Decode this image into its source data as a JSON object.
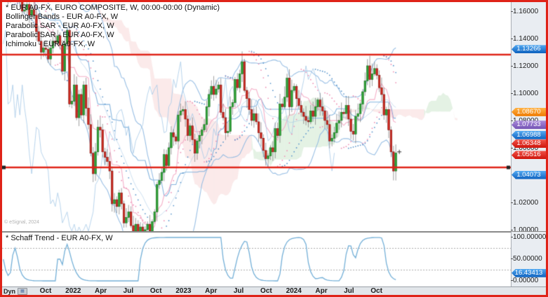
{
  "window_border_color": "#df2318",
  "legend": {
    "lines": [
      "* EUR A0-FX, EURO COMPOSITE, W, 00:00-00:00 (Dynamic)",
      "Bollinger Bands - EUR A0-FX, W",
      "Parabolic SAR - EUR A0-FX, W",
      "Parabolic SAR - EUR A0-FX, W",
      "Ichimoku - EUR A0-FX, W"
    ]
  },
  "schaff_panel": {
    "title": "* Schaff Trend - EUR A0-FX, W"
  },
  "watermark": "© eSignal, 2024",
  "price_axis": {
    "ticks": [
      {
        "text": "1.16000",
        "value": 1.16
      },
      {
        "text": "1.14000",
        "value": 1.14
      },
      {
        "text": "1.12000",
        "value": 1.12
      },
      {
        "text": "1.10000",
        "value": 1.1
      },
      {
        "text": "1.08000",
        "value": 1.08
      },
      {
        "text": "1.06000",
        "value": 1.06
      },
      {
        "text": "1.02000",
        "value": 1.02
      },
      {
        "text": "1.00000",
        "value": 1.0
      }
    ],
    "badges": [
      {
        "text": "1.13266",
        "value": 1.13266,
        "color": "blue"
      },
      {
        "text": "1.08670",
        "value": 1.0867,
        "color": "orange"
      },
      {
        "text": "1.07733",
        "value": 1.07733,
        "color": "purple"
      },
      {
        "text": "1.06988",
        "value": 1.06988,
        "color": "blue"
      },
      {
        "text": "1.06348",
        "value": 1.06348,
        "color": "red"
      },
      {
        "text": "1.05516",
        "value": 1.05516,
        "color": "red"
      },
      {
        "text": "1.04073",
        "value": 1.04073,
        "color": "blue"
      }
    ]
  },
  "schaff_axis": {
    "ticks": [
      {
        "text": "100.00000",
        "value": 100
      },
      {
        "text": "50.00000",
        "value": 50
      },
      {
        "text": "0.00000",
        "value": 0
      }
    ],
    "badge": {
      "text": "16.43413",
      "value": 16.43413,
      "color": "blue"
    },
    "dotted_levels": [
      75,
      25
    ]
  },
  "timeline": {
    "dyn_label": "Dyn",
    "labels": [
      "Oct",
      "2022",
      "Apr",
      "Jul",
      "Oct",
      "2023",
      "Apr",
      "Jul",
      "Oct",
      "2024",
      "Apr",
      "Jul",
      "Oct"
    ]
  },
  "trendlines": [
    {
      "price": 1.1272,
      "selected": false
    },
    {
      "price": 1.0446,
      "selected": true
    }
  ],
  "chart_data": {
    "type": "candlestick",
    "symbol": "EUR A0-FX, EURO COMPOSITE",
    "interval": "W",
    "ylim": [
      0.995,
      1.165
    ],
    "y_gridstep": 0.02,
    "closes": [
      1.177,
      1.173,
      1.17,
      1.179,
      1.181,
      1.173,
      1.172,
      1.166,
      1.159,
      1.16,
      1.164,
      1.156,
      1.16,
      1.156,
      1.144,
      1.137,
      1.129,
      1.132,
      1.131,
      1.124,
      1.132,
      1.137,
      1.136,
      1.141,
      1.134,
      1.115,
      1.135,
      1.145,
      1.091,
      1.093,
      1.105,
      1.081,
      1.098,
      1.083,
      1.105,
      1.088,
      1.076,
      1.055,
      1.04,
      1.056,
      1.074,
      1.072,
      1.056,
      1.052,
      1.049,
      1.042,
      1.018,
      1.021,
      1.016,
      1.026,
      1.018,
      1.004,
      1.008,
      1.012,
      1.002,
      0.998,
      1.003,
      0.996,
      1.001,
      0.997,
      0.999,
      1.003,
      0.998,
      1.005,
      1.012,
      1.032,
      1.035,
      1.041,
      1.054,
      1.046,
      1.059,
      1.07,
      1.067,
      1.064,
      1.083,
      1.086,
      1.087,
      1.08,
      1.068,
      1.075,
      1.065,
      1.055,
      1.064,
      1.068,
      1.072,
      1.076,
      1.089,
      1.098,
      1.104,
      1.098,
      1.102,
      1.105,
      1.085,
      1.081,
      1.07,
      1.071,
      1.089,
      1.092,
      1.109,
      1.103,
      1.113,
      1.122,
      1.101,
      1.095,
      1.087,
      1.079,
      1.084,
      1.078,
      1.07,
      1.066,
      1.057,
      1.051,
      1.053,
      1.059,
      1.056,
      1.073,
      1.068,
      1.091,
      1.089,
      1.096,
      1.11,
      1.089,
      1.101,
      1.104,
      1.095,
      1.09,
      1.085,
      1.082,
      1.079,
      1.078,
      1.086,
      1.082,
      1.089,
      1.094,
      1.089,
      1.086,
      1.079,
      1.076,
      1.064,
      1.066,
      1.07,
      1.077,
      1.079,
      1.085,
      1.084,
      1.09,
      1.08,
      1.071,
      1.069,
      1.082,
      1.084,
      1.091,
      1.1,
      1.108,
      1.119,
      1.109,
      1.113,
      1.117,
      1.112,
      1.103,
      1.098,
      1.083,
      1.087,
      1.072,
      1.056,
      1.042,
      1.0552
    ],
    "indicators": [
      {
        "name": "Bollinger Bands",
        "params": [
          20,
          2
        ]
      },
      {
        "name": "Parabolic SAR",
        "params": [
          0.02,
          0.2
        ]
      },
      {
        "name": "Parabolic SAR",
        "params": [
          0.012,
          0.12
        ]
      },
      {
        "name": "Ichimoku",
        "params": [
          9,
          26,
          52
        ]
      },
      {
        "name": "Schaff Trend",
        "last_value": 16.43413
      }
    ],
    "last_marker_price": 1.056,
    "colors": {
      "candle_up": "#2fa436",
      "candle_up_border": "#156b1c",
      "candle_down": "#cf2a20",
      "candle_down_border": "#7e120d",
      "bollinger": "#8fb9e2",
      "tenkan": "#f4a7c3",
      "kijun": "#7aaedc",
      "chikou": "#a8cbe8",
      "cloud_up": "rgba(130,195,130,0.22)",
      "cloud_down": "rgba(236,160,160,0.22)",
      "psar1": "#ef8fb4",
      "psar2": "#5a96cc",
      "schaff_line": "#74b0d8",
      "trendline": "#df2318"
    }
  }
}
